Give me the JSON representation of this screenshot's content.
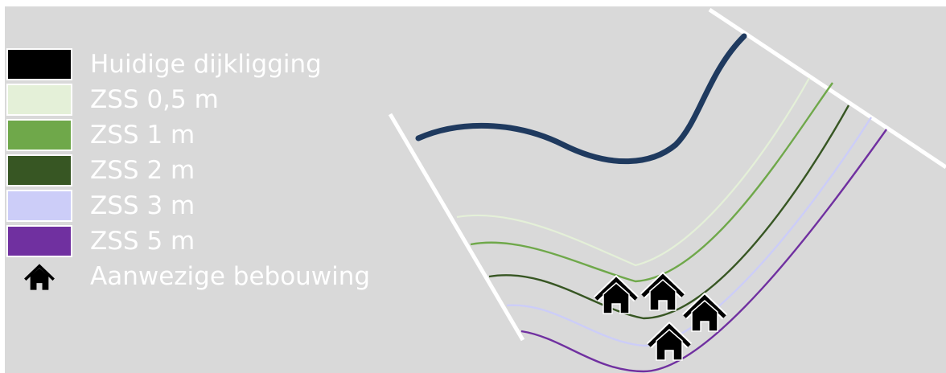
{
  "legend": {
    "items": [
      {
        "label": "Huidige dijkligging",
        "color": "#000000",
        "kind": "line"
      },
      {
        "label": "ZSS 0,5 m",
        "color": "#e4f0d8",
        "kind": "line"
      },
      {
        "label": "ZSS 1 m",
        "color": "#6fa84a",
        "kind": "line"
      },
      {
        "label": "ZSS 2 m",
        "color": "#375623",
        "kind": "line"
      },
      {
        "label": "ZSS 3 m",
        "color": "#cccdf8",
        "kind": "line"
      },
      {
        "label": "ZSS 5 m",
        "color": "#7030a0",
        "kind": "line"
      },
      {
        "label": "Aanwezige bebouwing",
        "icon": "house-icon",
        "kind": "icon"
      }
    ]
  },
  "colors": {
    "background": "#d9d9d9",
    "current_dike": "#1f3a5f",
    "boundary": "#ffffff",
    "house": "#000000"
  }
}
